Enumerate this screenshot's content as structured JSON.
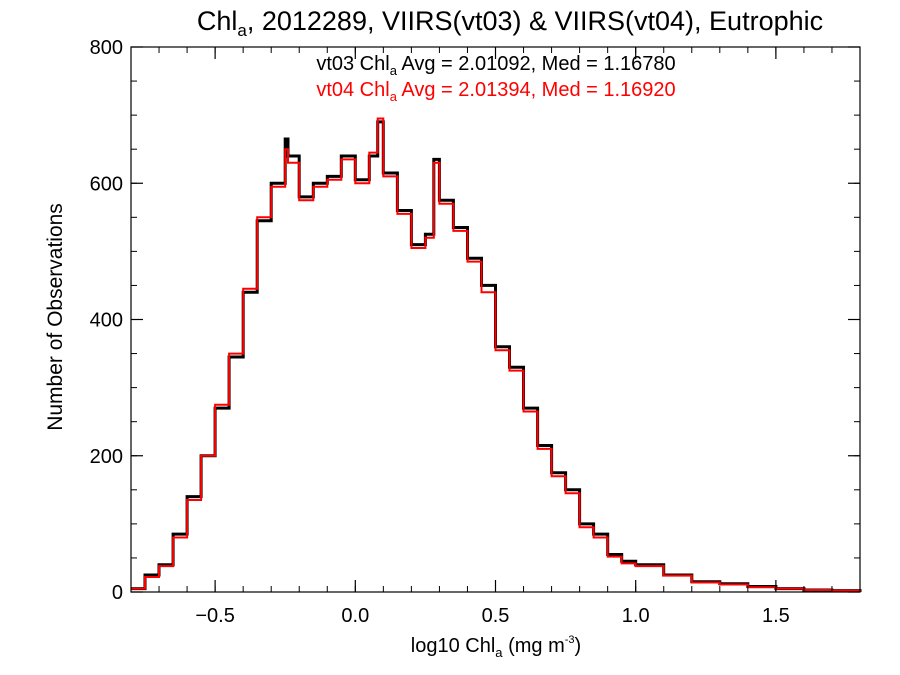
{
  "chart_data": {
    "type": "line",
    "step": true,
    "title_parts": [
      "Chl",
      "a",
      ", 2012289, VIIRS(vt03) & VIIRS(vt04), Eutrophic"
    ],
    "xlabel_parts": [
      "log10 Chl",
      "a",
      " (mg m",
      "-3",
      ")"
    ],
    "ylabel": "Number of Observations",
    "xlim": [
      -0.8,
      1.8
    ],
    "ylim": [
      0,
      800
    ],
    "x_ticks": [
      -0.5,
      0.0,
      0.5,
      1.0,
      1.5
    ],
    "x_tick_labels": [
      "−0.5",
      "0.0",
      "0.5",
      "1.0",
      "1.5"
    ],
    "y_ticks": [
      0,
      200,
      400,
      600,
      800
    ],
    "y_tick_labels": [
      "0",
      "200",
      "400",
      "600",
      "800"
    ],
    "annotations": [
      {
        "parts": [
          "vt03 Chl",
          "a",
          " Avg = 2.01092, Med = 1.16780"
        ],
        "color": "#000000"
      },
      {
        "parts": [
          "vt04 Chl",
          "a",
          " Avg = 2.01394, Med = 1.16920"
        ],
        "color": "#ff0000"
      }
    ],
    "series": [
      {
        "color": "#000000",
        "x": [
          -0.8,
          -0.75,
          -0.7,
          -0.65,
          -0.6,
          -0.55,
          -0.5,
          -0.45,
          -0.4,
          -0.35,
          -0.3,
          -0.25,
          -0.24,
          -0.2,
          -0.15,
          -0.1,
          -0.05,
          0.0,
          0.05,
          0.08,
          0.1,
          0.15,
          0.2,
          0.25,
          0.28,
          0.3,
          0.35,
          0.4,
          0.45,
          0.5,
          0.55,
          0.6,
          0.65,
          0.7,
          0.75,
          0.8,
          0.85,
          0.9,
          0.95,
          1.0,
          1.1,
          1.2,
          1.3,
          1.4,
          1.5,
          1.6,
          1.7,
          1.8
        ],
        "y": [
          5,
          25,
          40,
          85,
          140,
          200,
          270,
          345,
          440,
          545,
          600,
          665,
          640,
          580,
          600,
          610,
          640,
          605,
          640,
          690,
          615,
          560,
          510,
          525,
          635,
          575,
          535,
          490,
          450,
          360,
          330,
          270,
          215,
          175,
          150,
          100,
          85,
          55,
          45,
          40,
          25,
          15,
          12,
          8,
          5,
          3,
          2,
          0
        ]
      },
      {
        "color": "#ff0000",
        "x": [
          -0.8,
          -0.75,
          -0.7,
          -0.65,
          -0.6,
          -0.55,
          -0.5,
          -0.45,
          -0.4,
          -0.35,
          -0.3,
          -0.25,
          -0.24,
          -0.2,
          -0.15,
          -0.1,
          -0.05,
          0.0,
          0.05,
          0.08,
          0.1,
          0.15,
          0.2,
          0.25,
          0.28,
          0.3,
          0.35,
          0.4,
          0.45,
          0.5,
          0.55,
          0.6,
          0.65,
          0.7,
          0.75,
          0.8,
          0.85,
          0.9,
          0.95,
          1.0,
          1.1,
          1.2,
          1.3,
          1.4,
          1.5,
          1.6,
          1.7,
          1.8
        ],
        "y": [
          5,
          22,
          38,
          80,
          135,
          200,
          275,
          350,
          445,
          550,
          595,
          650,
          630,
          575,
          595,
          605,
          635,
          600,
          645,
          695,
          610,
          555,
          505,
          520,
          630,
          570,
          530,
          485,
          440,
          355,
          325,
          265,
          210,
          170,
          145,
          95,
          80,
          52,
          42,
          38,
          24,
          14,
          11,
          7,
          5,
          3,
          2,
          0
        ]
      }
    ]
  }
}
